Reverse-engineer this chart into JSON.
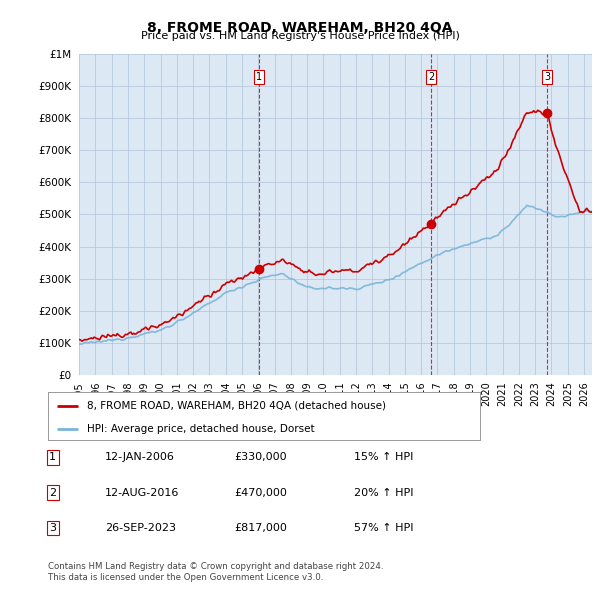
{
  "title": "8, FROME ROAD, WAREHAM, BH20 4QA",
  "subtitle": "Price paid vs. HM Land Registry's House Price Index (HPI)",
  "ylabel_ticks": [
    "£0",
    "£100K",
    "£200K",
    "£300K",
    "£400K",
    "£500K",
    "£600K",
    "£700K",
    "£800K",
    "£900K",
    "£1M"
  ],
  "ytick_values": [
    0,
    100000,
    200000,
    300000,
    400000,
    500000,
    600000,
    700000,
    800000,
    900000,
    1000000
  ],
  "xlim_start": 1995.0,
  "xlim_end": 2026.5,
  "ylim_min": 0,
  "ylim_max": 1000000,
  "sale_dates": [
    2006.04,
    2016.62,
    2023.74
  ],
  "sale_prices": [
    330000,
    470000,
    817000
  ],
  "sale_labels": [
    "1",
    "2",
    "3"
  ],
  "sale_info": [
    {
      "label": "1",
      "date": "12-JAN-2006",
      "price": "£330,000",
      "hpi": "15% ↑ HPI"
    },
    {
      "label": "2",
      "date": "12-AUG-2016",
      "price": "£470,000",
      "hpi": "20% ↑ HPI"
    },
    {
      "label": "3",
      "date": "26-SEP-2023",
      "price": "£817,000",
      "hpi": "57% ↑ HPI"
    }
  ],
  "legend_entry1": "8, FROME ROAD, WAREHAM, BH20 4QA (detached house)",
  "legend_entry2": "HPI: Average price, detached house, Dorset",
  "footer1": "Contains HM Land Registry data © Crown copyright and database right 2024.",
  "footer2": "This data is licensed under the Open Government Licence v3.0.",
  "hpi_color": "#7ab4d8",
  "price_color": "#cc0000",
  "vline_color": "#cc0000",
  "chart_bg": "#dde8f5",
  "grid_color": "#b0c4d8",
  "xticks": [
    1995,
    1996,
    1997,
    1998,
    1999,
    2000,
    2001,
    2002,
    2003,
    2004,
    2005,
    2006,
    2007,
    2008,
    2009,
    2010,
    2011,
    2012,
    2013,
    2014,
    2015,
    2016,
    2017,
    2018,
    2019,
    2020,
    2021,
    2022,
    2023,
    2024,
    2025,
    2026
  ]
}
